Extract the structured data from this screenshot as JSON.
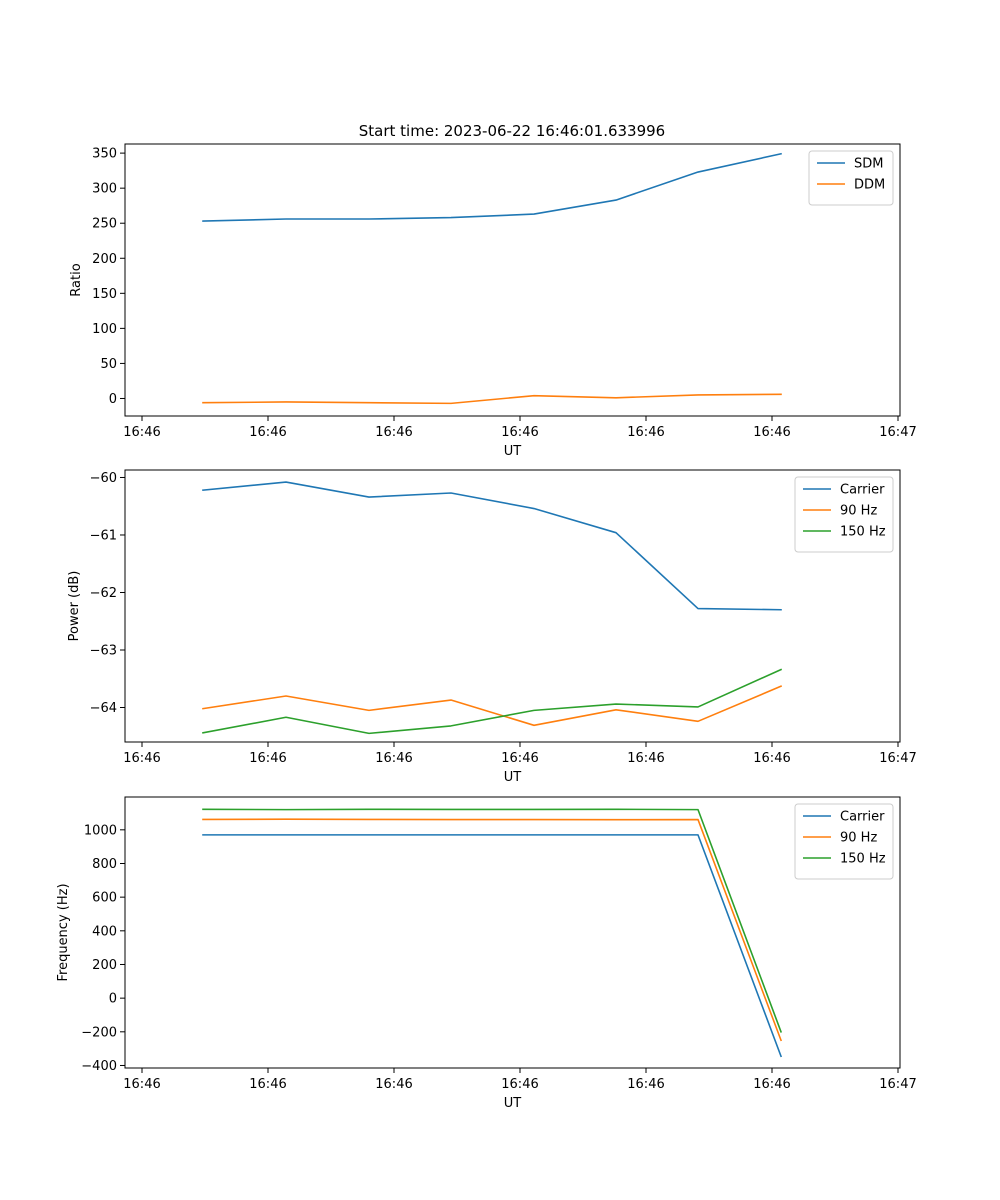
{
  "chart_data": [
    {
      "type": "line",
      "title": "Start time: 2023-06-22 16:46:01.633996",
      "xlabel": "UT",
      "ylabel": "Ratio",
      "x_tick_labels": [
        "16:46",
        "16:46",
        "16:46",
        "16:46",
        "16:46",
        "16:46",
        "16:47"
      ],
      "y_ticks": [
        0,
        50,
        100,
        150,
        200,
        250,
        300,
        350
      ],
      "ylim": [
        -25,
        363
      ],
      "grid": false,
      "legend": "top-right",
      "series": [
        {
          "name": "SDM",
          "color": "#1f77b4",
          "values": [
            253,
            256,
            256,
            258,
            263,
            283,
            323,
            349
          ]
        },
        {
          "name": "DDM",
          "color": "#ff7f0e",
          "values": [
            -6,
            -5,
            -6,
            -7,
            4,
            1,
            5,
            6
          ]
        }
      ]
    },
    {
      "type": "line",
      "title": "",
      "xlabel": "UT",
      "ylabel": "Power (dB)",
      "x_tick_labels": [
        "16:46",
        "16:46",
        "16:46",
        "16:46",
        "16:46",
        "16:46",
        "16:47"
      ],
      "y_ticks": [
        -64,
        -63,
        -62,
        -61,
        -60
      ],
      "ylim": [
        -64.6,
        -59.87
      ],
      "grid": false,
      "legend": "top-right",
      "series": [
        {
          "name": "Carrier",
          "color": "#1f77b4",
          "values": [
            -60.22,
            -60.08,
            -60.34,
            -60.27,
            -60.54,
            -60.96,
            -62.28,
            -62.3
          ]
        },
        {
          "name": "90 Hz",
          "color": "#ff7f0e",
          "values": [
            -64.02,
            -63.8,
            -64.05,
            -63.87,
            -64.31,
            -64.04,
            -64.24,
            -63.63
          ]
        },
        {
          "name": "150 Hz",
          "color": "#2ca02c",
          "values": [
            -64.44,
            -64.17,
            -64.45,
            -64.32,
            -64.05,
            -63.94,
            -63.99,
            -63.34
          ]
        }
      ]
    },
    {
      "type": "line",
      "title": "",
      "xlabel": "UT",
      "ylabel": "Frequency (Hz)",
      "x_tick_labels": [
        "16:46",
        "16:46",
        "16:46",
        "16:46",
        "16:46",
        "16:46",
        "16:47"
      ],
      "y_ticks": [
        -400,
        -200,
        0,
        200,
        400,
        600,
        800,
        1000
      ],
      "ylim": [
        -415,
        1195
      ],
      "grid": false,
      "legend": "top-right",
      "series": [
        {
          "name": "Carrier",
          "color": "#1f77b4",
          "values": [
            970,
            970,
            970,
            970,
            970,
            970,
            970,
            -345
          ]
        },
        {
          "name": "90 Hz",
          "color": "#ff7f0e",
          "values": [
            1062,
            1063,
            1062,
            1061,
            1061,
            1060,
            1061,
            -250
          ]
        },
        {
          "name": "150 Hz",
          "color": "#2ca02c",
          "values": [
            1122,
            1120,
            1122,
            1121,
            1121,
            1122,
            1120,
            -200
          ]
        }
      ]
    }
  ]
}
